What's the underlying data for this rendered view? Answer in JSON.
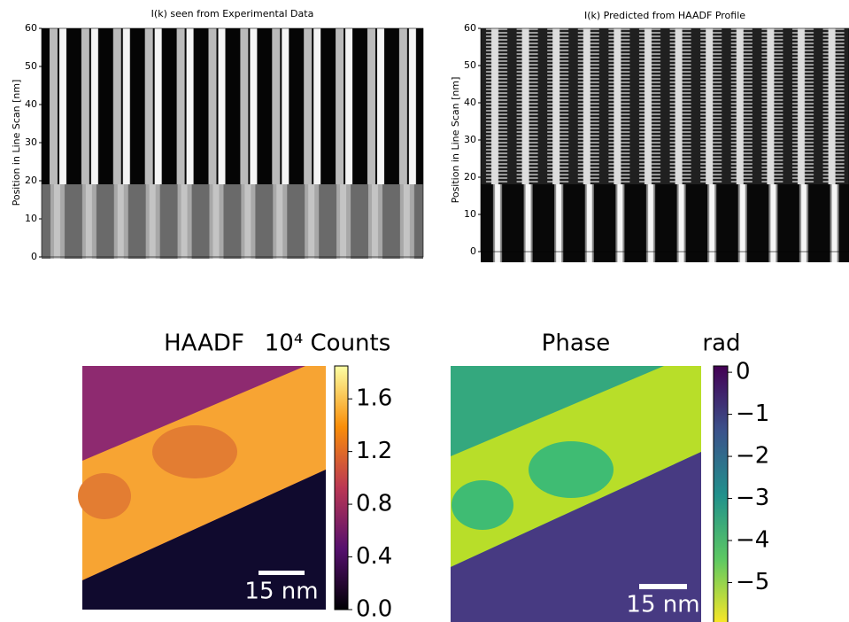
{
  "chart_data": [
    {
      "type": "image",
      "title": "I(k) seen from Experimental Data",
      "ylabel": "Position in Line Scan [nm]",
      "ylim": [
        0,
        60
      ],
      "yticks": [
        0,
        10,
        20,
        30,
        40,
        50,
        60
      ]
    },
    {
      "type": "image",
      "title": "I(k) Predicted from HAADF Profile",
      "ylabel": "Position in Line Scan [nm]",
      "ylim": [
        0,
        60
      ],
      "yticks": [
        0,
        10,
        20,
        30,
        40,
        50,
        60
      ]
    },
    {
      "type": "colormap",
      "title": "HAADF",
      "colorbar_label": "10⁴ Counts",
      "clim": [
        0,
        1.85
      ],
      "cticks": [
        {
          "value": 0,
          "label": "0.0"
        },
        0.4,
        0.8,
        1.2,
        1.6
      ],
      "scale_bar": "15 nm"
    },
    {
      "type": "colormap",
      "title": "Phase",
      "colorbar_label": "rad",
      "clim": [
        -6,
        0.15
      ],
      "cticks": [
        0,
        {
          "value": -1,
          "label": "−1"
        },
        {
          "value": -2,
          "label": "−2"
        },
        {
          "value": -3,
          "label": "−3"
        },
        {
          "value": -4,
          "label": "−4"
        },
        {
          "value": -5,
          "label": "−5"
        }
      ],
      "scale_bar": "15 nm"
    }
  ]
}
